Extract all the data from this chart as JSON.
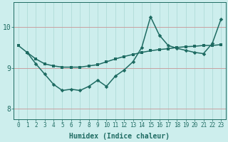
{
  "xlabel": "Humidex (Indice chaleur)",
  "background_color": "#cdeeed",
  "line_color": "#1e6b62",
  "grid_color_v": "#b0dbd8",
  "grid_color_h": "#c8a0a0",
  "x_data": [
    0,
    1,
    2,
    3,
    4,
    5,
    6,
    7,
    8,
    9,
    10,
    11,
    12,
    13,
    14,
    15,
    16,
    17,
    18,
    19,
    20,
    21,
    22,
    23
  ],
  "curve1_y": [
    9.55,
    9.38,
    9.22,
    9.1,
    9.05,
    9.02,
    9.02,
    9.02,
    9.05,
    9.08,
    9.15,
    9.22,
    9.28,
    9.33,
    9.38,
    9.42,
    9.45,
    9.47,
    9.5,
    9.52,
    9.53,
    9.55,
    9.55,
    9.57
  ],
  "curve2_y": [
    null,
    9.38,
    9.1,
    8.85,
    8.6,
    8.45,
    8.48,
    8.45,
    8.55,
    8.7,
    8.55,
    8.8,
    8.95,
    9.15,
    9.5,
    10.25,
    9.8,
    9.55,
    9.48,
    9.43,
    9.38,
    9.35,
    9.6,
    10.2
  ],
  "ylim": [
    7.75,
    10.6
  ],
  "yticks": [
    8,
    9,
    10
  ],
  "ytick_labels": [
    "8",
    "9",
    "10"
  ],
  "xlim": [
    -0.5,
    23.5
  ],
  "font_color": "#1e6b62",
  "marker_size": 2.8,
  "line_width": 1.1,
  "font_size_x": 5.5,
  "font_size_y": 7.0,
  "font_size_xlabel": 7.0
}
